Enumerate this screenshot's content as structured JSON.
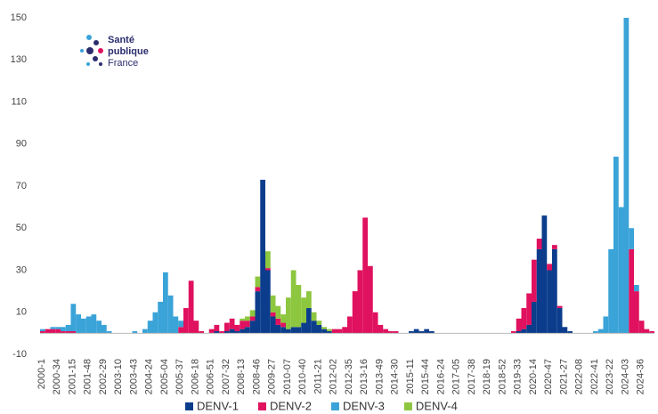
{
  "chart_data": {
    "type": "stacked_bar",
    "annotations": [
      "Santé",
      "publique",
      "France"
    ],
    "ylim": [
      -10,
      150
    ],
    "yticks": [
      -10,
      10,
      30,
      50,
      70,
      90,
      110,
      130,
      150
    ],
    "categories": [
      "2000-1",
      null,
      null,
      "2000-34",
      null,
      null,
      "2001-15",
      null,
      null,
      "2001-48",
      null,
      null,
      "2002-29",
      null,
      null,
      "2003-10",
      null,
      null,
      "2003-43",
      null,
      null,
      "2004-24",
      null,
      null,
      "2005-04",
      null,
      null,
      "2005-37",
      null,
      null,
      "2006-18",
      null,
      null,
      "2006-51",
      null,
      null,
      "2007-32",
      null,
      null,
      "2008-13",
      null,
      null,
      "2008-46",
      null,
      null,
      "2009-27",
      null,
      null,
      "2010-07",
      null,
      null,
      "2010-40",
      null,
      null,
      "2011-21",
      null,
      null,
      "2012-02",
      null,
      null,
      "2012-35",
      null,
      null,
      "2013-16",
      null,
      null,
      "2013-49",
      null,
      null,
      "2014-30",
      null,
      null,
      "2015-11",
      null,
      null,
      "2015-44",
      null,
      null,
      "2016-24",
      null,
      null,
      "2017-05",
      null,
      null,
      "2017-38",
      null,
      null,
      "2018-19",
      null,
      null,
      "2018-52",
      null,
      null,
      "2019-33",
      null,
      null,
      "2020-14",
      null,
      null,
      "2020-47",
      null,
      null,
      "2021-27",
      null,
      null,
      "2022-08",
      null,
      null,
      "2022-41",
      null,
      null,
      "2023-22",
      null,
      null,
      "2024-03",
      null,
      null,
      "2024-36",
      null,
      null
    ],
    "series": [
      {
        "name": "DENV-1",
        "color": "#0b3d8c",
        "values": [
          0,
          0,
          0,
          0,
          0,
          0,
          0,
          0,
          0,
          0,
          0,
          0,
          0,
          0,
          0,
          0,
          0,
          0,
          0,
          0,
          0,
          0,
          0,
          0,
          0,
          0,
          0,
          0,
          0,
          0,
          0,
          0,
          0,
          0,
          1,
          0,
          1,
          2,
          1,
          2,
          3,
          6,
          20,
          73,
          30,
          8,
          4,
          3,
          2,
          3,
          3,
          5,
          12,
          6,
          4,
          2,
          1,
          0,
          0,
          0,
          0,
          0,
          0,
          0,
          0,
          0,
          0,
          0,
          0,
          0,
          0,
          0,
          1,
          2,
          1,
          2,
          1,
          0,
          0,
          0,
          0,
          0,
          0,
          0,
          0,
          0,
          0,
          0,
          0,
          0,
          0,
          0,
          0,
          1,
          2,
          4,
          15,
          40,
          56,
          30,
          40,
          12,
          3,
          1,
          0,
          0,
          0,
          0,
          0,
          0,
          0,
          0,
          0,
          0,
          0,
          0,
          0,
          0,
          0,
          0
        ]
      },
      {
        "name": "DENV-2",
        "color": "#e0115f",
        "values": [
          1,
          2,
          2,
          2,
          1,
          1,
          1,
          0,
          0,
          0,
          0,
          0,
          0,
          0,
          0,
          0,
          0,
          0,
          0,
          0,
          0,
          0,
          0,
          0,
          0,
          0,
          0,
          3,
          12,
          25,
          6,
          1,
          0,
          2,
          3,
          1,
          4,
          5,
          3,
          4,
          3,
          2,
          2,
          0,
          1,
          2,
          3,
          2,
          0,
          0,
          0,
          0,
          0,
          0,
          0,
          0,
          0,
          2,
          2,
          3,
          8,
          20,
          30,
          55,
          32,
          10,
          4,
          2,
          1,
          1,
          0,
          0,
          0,
          0,
          0,
          0,
          0,
          0,
          0,
          0,
          0,
          0,
          0,
          0,
          0,
          0,
          0,
          0,
          0,
          0,
          0,
          0,
          1,
          6,
          10,
          15,
          20,
          5,
          0,
          3,
          2,
          1,
          0,
          0,
          0,
          0,
          0,
          0,
          0,
          0,
          0,
          0,
          0,
          0,
          0,
          40,
          20,
          6,
          2,
          1
        ]
      },
      {
        "name": "DENV-3",
        "color": "#3aa3d8",
        "values": [
          1,
          0,
          1,
          1,
          2,
          3,
          13,
          9,
          7,
          8,
          9,
          6,
          4,
          1,
          0,
          0,
          0,
          0,
          1,
          0,
          2,
          6,
          10,
          15,
          29,
          18,
          8,
          3,
          0,
          0,
          0,
          0,
          0,
          0,
          0,
          0,
          0,
          0,
          0,
          0,
          0,
          0,
          0,
          0,
          0,
          0,
          0,
          0,
          0,
          0,
          0,
          0,
          0,
          0,
          0,
          0,
          0,
          0,
          0,
          0,
          0,
          0,
          0,
          0,
          0,
          0,
          0,
          0,
          0,
          0,
          0,
          0,
          0,
          0,
          0,
          0,
          0,
          0,
          0,
          0,
          0,
          0,
          0,
          0,
          0,
          0,
          0,
          0,
          0,
          0,
          0,
          0,
          0,
          0,
          0,
          0,
          0,
          0,
          0,
          0,
          0,
          0,
          0,
          0,
          0,
          0,
          0,
          0,
          1,
          2,
          8,
          40,
          84,
          60,
          150,
          10,
          3,
          0,
          0,
          0
        ]
      },
      {
        "name": "DENV-4",
        "color": "#8dc63f",
        "values": [
          0,
          0,
          0,
          0,
          0,
          0,
          0,
          0,
          0,
          0,
          0,
          0,
          0,
          0,
          0,
          0,
          0,
          0,
          0,
          0,
          0,
          0,
          0,
          0,
          0,
          0,
          0,
          0,
          0,
          0,
          0,
          0,
          0,
          0,
          0,
          0,
          0,
          0,
          0,
          1,
          2,
          3,
          5,
          0,
          8,
          8,
          6,
          4,
          15,
          27,
          20,
          12,
          8,
          4,
          2,
          1,
          1,
          0,
          0,
          0,
          0,
          0,
          0,
          0,
          0,
          0,
          0,
          0,
          0,
          0,
          0,
          0,
          0,
          0,
          0,
          0,
          0,
          0,
          0,
          0,
          0,
          0,
          0,
          0,
          0,
          0,
          0,
          0,
          0,
          0,
          0,
          0,
          0,
          0,
          0,
          0,
          0,
          0,
          0,
          0,
          0,
          0,
          0,
          0,
          0,
          0,
          0,
          0,
          0,
          0,
          0,
          0,
          0,
          0,
          0,
          0,
          0,
          0,
          0,
          0
        ]
      }
    ]
  }
}
